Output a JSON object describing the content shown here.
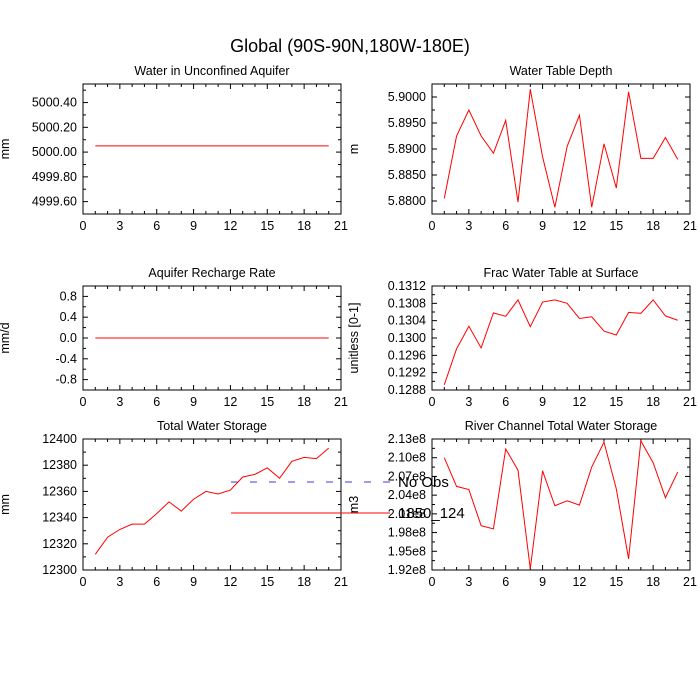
{
  "page": {
    "title": "Global (90S-90N,180W-180E)",
    "legend": [
      {
        "name": "No Obs",
        "color": "#3b3bd6",
        "dash": true
      },
      {
        "name": "1850_124",
        "color": "#ff0000",
        "dash": false
      }
    ]
  },
  "chart_data": [
    {
      "type": "line",
      "title": "Water in Unconfined Aquifer",
      "ylabel": "mm",
      "xlabel": "",
      "xlim": [
        0,
        21
      ],
      "xticks": [
        0,
        3,
        6,
        9,
        12,
        15,
        18,
        21
      ],
      "ylim": [
        4999.5,
        5000.55
      ],
      "yticks": [
        4999.6,
        4999.8,
        5000.0,
        5000.2,
        5000.4
      ],
      "ytick_labels": [
        "4999.60",
        "4999.80",
        "5000.00",
        "5000.20",
        "5000.40"
      ],
      "x": [
        1,
        2,
        3,
        4,
        5,
        6,
        7,
        8,
        9,
        10,
        11,
        12,
        13,
        14,
        15,
        16,
        17,
        18,
        19,
        20
      ],
      "series": [
        {
          "name": "1850_124",
          "color": "#ff0000",
          "values": [
            5000.05,
            5000.05,
            5000.05,
            5000.05,
            5000.05,
            5000.05,
            5000.05,
            5000.05,
            5000.05,
            5000.05,
            5000.05,
            5000.05,
            5000.05,
            5000.05,
            5000.05,
            5000.05,
            5000.05,
            5000.05,
            5000.05,
            5000.05
          ]
        }
      ]
    },
    {
      "type": "line",
      "title": "Water Table Depth",
      "ylabel": "m",
      "xlabel": "",
      "xlim": [
        0,
        21
      ],
      "xticks": [
        0,
        3,
        6,
        9,
        12,
        15,
        18,
        21
      ],
      "ylim": [
        5.8775,
        5.9025
      ],
      "yticks": [
        5.88,
        5.885,
        5.89,
        5.895,
        5.9
      ],
      "ytick_labels": [
        "5.8800",
        "5.8850",
        "5.8900",
        "5.8950",
        "5.9000"
      ],
      "x": [
        1,
        2,
        3,
        4,
        5,
        6,
        7,
        8,
        9,
        10,
        11,
        12,
        13,
        14,
        15,
        16,
        17,
        18,
        19,
        20
      ],
      "series": [
        {
          "name": "1850_124",
          "color": "#ff0000",
          "values": [
            5.8805,
            5.8925,
            5.8975,
            5.8925,
            5.8892,
            5.8955,
            5.8798,
            5.9015,
            5.8885,
            5.8788,
            5.8905,
            5.8965,
            5.8788,
            5.891,
            5.8825,
            5.901,
            5.8882,
            5.8882,
            5.8922,
            5.888
          ]
        }
      ]
    },
    {
      "type": "line",
      "title": "Aquifer Recharge Rate",
      "ylabel": "mm/d",
      "xlabel": "",
      "xlim": [
        0,
        21
      ],
      "xticks": [
        0,
        3,
        6,
        9,
        12,
        15,
        18,
        21
      ],
      "ylim": [
        -1.0,
        1.0
      ],
      "yticks": [
        -0.8,
        -0.4,
        0.0,
        0.4,
        0.8
      ],
      "ytick_labels": [
        "-0.8",
        "-0.4",
        "0.0",
        "0.4",
        "0.8"
      ],
      "x": [
        1,
        2,
        3,
        4,
        5,
        6,
        7,
        8,
        9,
        10,
        11,
        12,
        13,
        14,
        15,
        16,
        17,
        18,
        19,
        20
      ],
      "series": [
        {
          "name": "1850_124",
          "color": "#ff0000",
          "values": [
            0,
            0,
            0,
            0,
            0,
            0,
            0,
            0,
            0,
            0,
            0,
            0,
            0,
            0,
            0,
            0,
            0,
            0,
            0,
            0
          ]
        }
      ]
    },
    {
      "type": "line",
      "title": "Frac Water Table at Surface",
      "ylabel": "unitless [0-1]",
      "xlabel": "",
      "xlim": [
        0,
        21
      ],
      "xticks": [
        0,
        3,
        6,
        9,
        12,
        15,
        18,
        21
      ],
      "ylim": [
        0.1288,
        0.1312
      ],
      "yticks": [
        0.1288,
        0.1292,
        0.1296,
        0.13,
        0.1304,
        0.1308,
        0.1312
      ],
      "ytick_labels": [
        "0.1288",
        "0.1292",
        "0.1296",
        "0.1300",
        "0.1304",
        "0.1308",
        "0.1312"
      ],
      "x": [
        1,
        2,
        3,
        4,
        5,
        6,
        7,
        8,
        9,
        10,
        11,
        12,
        13,
        14,
        15,
        16,
        17,
        18,
        19,
        20
      ],
      "series": [
        {
          "name": "1850_124",
          "color": "#ff0000",
          "values": [
            0.12892,
            0.12975,
            0.13027,
            0.12977,
            0.13058,
            0.1305,
            0.13088,
            0.13026,
            0.13083,
            0.13088,
            0.1308,
            0.13045,
            0.13049,
            0.13016,
            0.13007,
            0.13059,
            0.13057,
            0.13088,
            0.13051,
            0.13041
          ]
        }
      ]
    },
    {
      "type": "line",
      "title": "Total Water Storage",
      "ylabel": "mm",
      "xlabel": "",
      "xlim": [
        0,
        21
      ],
      "xticks": [
        0,
        3,
        6,
        9,
        12,
        15,
        18,
        21
      ],
      "ylim": [
        12300,
        12400
      ],
      "yticks": [
        12300,
        12320,
        12340,
        12360,
        12380,
        12400
      ],
      "ytick_labels": [
        "12300",
        "12320",
        "12340",
        "12360",
        "12380",
        "12400"
      ],
      "x": [
        1,
        2,
        3,
        4,
        5,
        6,
        7,
        8,
        9,
        10,
        11,
        12,
        13,
        14,
        15,
        16,
        17,
        18,
        19,
        20
      ],
      "series": [
        {
          "name": "1850_124",
          "color": "#ff0000",
          "values": [
            12312,
            12325,
            12331,
            12335,
            12335,
            12343,
            12352,
            12345,
            12354,
            12360,
            12358,
            12361,
            12371,
            12373,
            12378,
            12370,
            12383,
            12386,
            12385,
            12393
          ]
        }
      ]
    },
    {
      "type": "line",
      "title": "River Channel Total Water Storage",
      "ylabel": "m3",
      "xlabel": "",
      "xlim": [
        0,
        21
      ],
      "xticks": [
        0,
        3,
        6,
        9,
        12,
        15,
        18,
        21
      ],
      "ylim": [
        192000000,
        213000000
      ],
      "yticks": [
        192000000,
        195000000,
        198000000,
        201000000,
        204000000,
        207000000,
        210000000,
        213000000
      ],
      "ytick_labels": [
        "1.92e8",
        "1.95e8",
        "1.98e8",
        "2.01e8",
        "2.04e8",
        "2.07e8",
        "2.10e8",
        "2.13e8"
      ],
      "x": [
        1,
        2,
        3,
        4,
        5,
        6,
        7,
        8,
        9,
        10,
        11,
        12,
        13,
        14,
        15,
        16,
        17,
        18,
        19,
        20
      ],
      "series": [
        {
          "name": "1850_124",
          "color": "#ff0000",
          "values": [
            210000000,
            205400000,
            204900000,
            199100000,
            198600000,
            211400000,
            208000000,
            192200000,
            207900000,
            202300000,
            203100000,
            202400000,
            208500000,
            212500000,
            205000000,
            193800000,
            212700000,
            209200000,
            203600000,
            207700000
          ]
        }
      ]
    }
  ]
}
